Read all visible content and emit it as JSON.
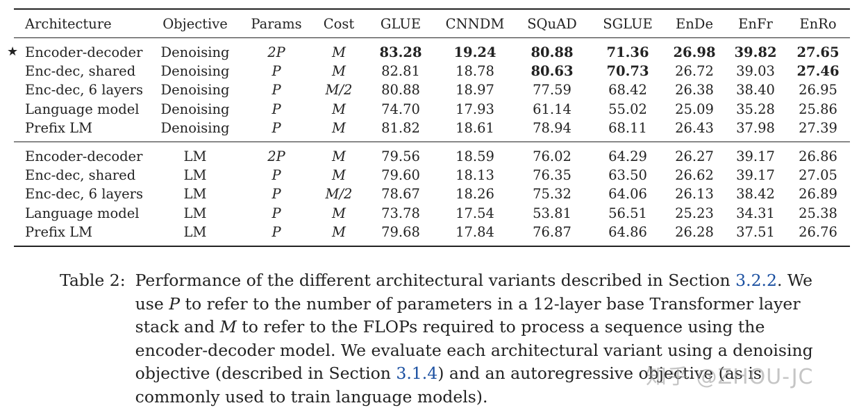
{
  "table": {
    "headers": [
      "Architecture",
      "Objective",
      "Params",
      "Cost",
      "GLUE",
      "CNNDM",
      "SQuAD",
      "SGLUE",
      "EnDe",
      "EnFr",
      "EnRo"
    ],
    "marker": "★",
    "groups": [
      {
        "rows": [
          {
            "arch": "Encoder-decoder",
            "objective": "Denoising",
            "params": "2P",
            "cost": "M",
            "glue": "83.28",
            "cnndm": "19.24",
            "squad": "80.88",
            "sglue": "71.36",
            "ende": "26.98",
            "enfr": "39.82",
            "enro": "27.65",
            "starred": true
          },
          {
            "arch": "Enc-dec, shared",
            "objective": "Denoising",
            "params": "P",
            "cost": "M",
            "glue": "82.81",
            "cnndm": "18.78",
            "squad": "80.63",
            "sglue": "70.73",
            "ende": "26.72",
            "enfr": "39.03",
            "enro": "27.46",
            "starred": false
          },
          {
            "arch": "Enc-dec, 6 layers",
            "objective": "Denoising",
            "params": "P",
            "cost": "M/2",
            "glue": "80.88",
            "cnndm": "18.97",
            "squad": "77.59",
            "sglue": "68.42",
            "ende": "26.38",
            "enfr": "38.40",
            "enro": "26.95",
            "starred": false
          },
          {
            "arch": "Language model",
            "objective": "Denoising",
            "params": "P",
            "cost": "M",
            "glue": "74.70",
            "cnndm": "17.93",
            "squad": "61.14",
            "sglue": "55.02",
            "ende": "25.09",
            "enfr": "35.28",
            "enro": "25.86",
            "starred": false
          },
          {
            "arch": "Prefix LM",
            "objective": "Denoising",
            "params": "P",
            "cost": "M",
            "glue": "81.82",
            "cnndm": "18.61",
            "squad": "78.94",
            "sglue": "68.11",
            "ende": "26.43",
            "enfr": "37.98",
            "enro": "27.39",
            "starred": false
          }
        ]
      },
      {
        "rows": [
          {
            "arch": "Encoder-decoder",
            "objective": "LM",
            "params": "2P",
            "cost": "M",
            "glue": "79.56",
            "cnndm": "18.59",
            "squad": "76.02",
            "sglue": "64.29",
            "ende": "26.27",
            "enfr": "39.17",
            "enro": "26.86",
            "starred": false
          },
          {
            "arch": "Enc-dec, shared",
            "objective": "LM",
            "params": "P",
            "cost": "M",
            "glue": "79.60",
            "cnndm": "18.13",
            "squad": "76.35",
            "sglue": "63.50",
            "ende": "26.62",
            "enfr": "39.17",
            "enro": "27.05",
            "starred": false
          },
          {
            "arch": "Enc-dec, 6 layers",
            "objective": "LM",
            "params": "P",
            "cost": "M/2",
            "glue": "78.67",
            "cnndm": "18.26",
            "squad": "75.32",
            "sglue": "64.06",
            "ende": "26.13",
            "enfr": "38.42",
            "enro": "26.89",
            "starred": false
          },
          {
            "arch": "Language model",
            "objective": "LM",
            "params": "P",
            "cost": "M",
            "glue": "73.78",
            "cnndm": "17.54",
            "squad": "53.81",
            "sglue": "56.51",
            "ende": "25.23",
            "enfr": "34.31",
            "enro": "25.38",
            "starred": false
          },
          {
            "arch": "Prefix LM",
            "objective": "LM",
            "params": "P",
            "cost": "M",
            "glue": "79.68",
            "cnndm": "17.84",
            "squad": "76.87",
            "sglue": "64.86",
            "ende": "26.28",
            "enfr": "37.51",
            "enro": "26.76",
            "starred": false
          }
        ]
      }
    ],
    "bold_cells": [
      {
        "group": 0,
        "row": 0,
        "col": "glue"
      },
      {
        "group": 0,
        "row": 0,
        "col": "cnndm"
      },
      {
        "group": 0,
        "row": 0,
        "col": "squad"
      },
      {
        "group": 0,
        "row": 0,
        "col": "sglue"
      },
      {
        "group": 0,
        "row": 0,
        "col": "ende"
      },
      {
        "group": 0,
        "row": 0,
        "col": "enfr"
      },
      {
        "group": 0,
        "row": 0,
        "col": "enro"
      },
      {
        "group": 0,
        "row": 1,
        "col": "squad"
      },
      {
        "group": 0,
        "row": 1,
        "col": "sglue"
      },
      {
        "group": 0,
        "row": 1,
        "col": "enro"
      }
    ]
  },
  "caption": {
    "label": "Table 2:",
    "t1": "Performance of the different architectural variants described in Section ",
    "ref1": "3.2.2",
    "t2": ". We use ",
    "p": "P",
    "t3": " to refer to the number of parameters in a 12-layer base Transformer layer stack and ",
    "m": "M",
    "t4": " to refer to the FLOPs required to process a sequence using the encoder-decoder model. We evaluate each architectural variant using a denoising objective (described in Section ",
    "ref2": "3.1.4",
    "t5": ") and an autoregressive objective (as is commonly used to train language models)."
  },
  "watermark": "知乎 @ZHOU-JC",
  "colors": {
    "text": "#222222",
    "link": "#1a4fa0"
  }
}
